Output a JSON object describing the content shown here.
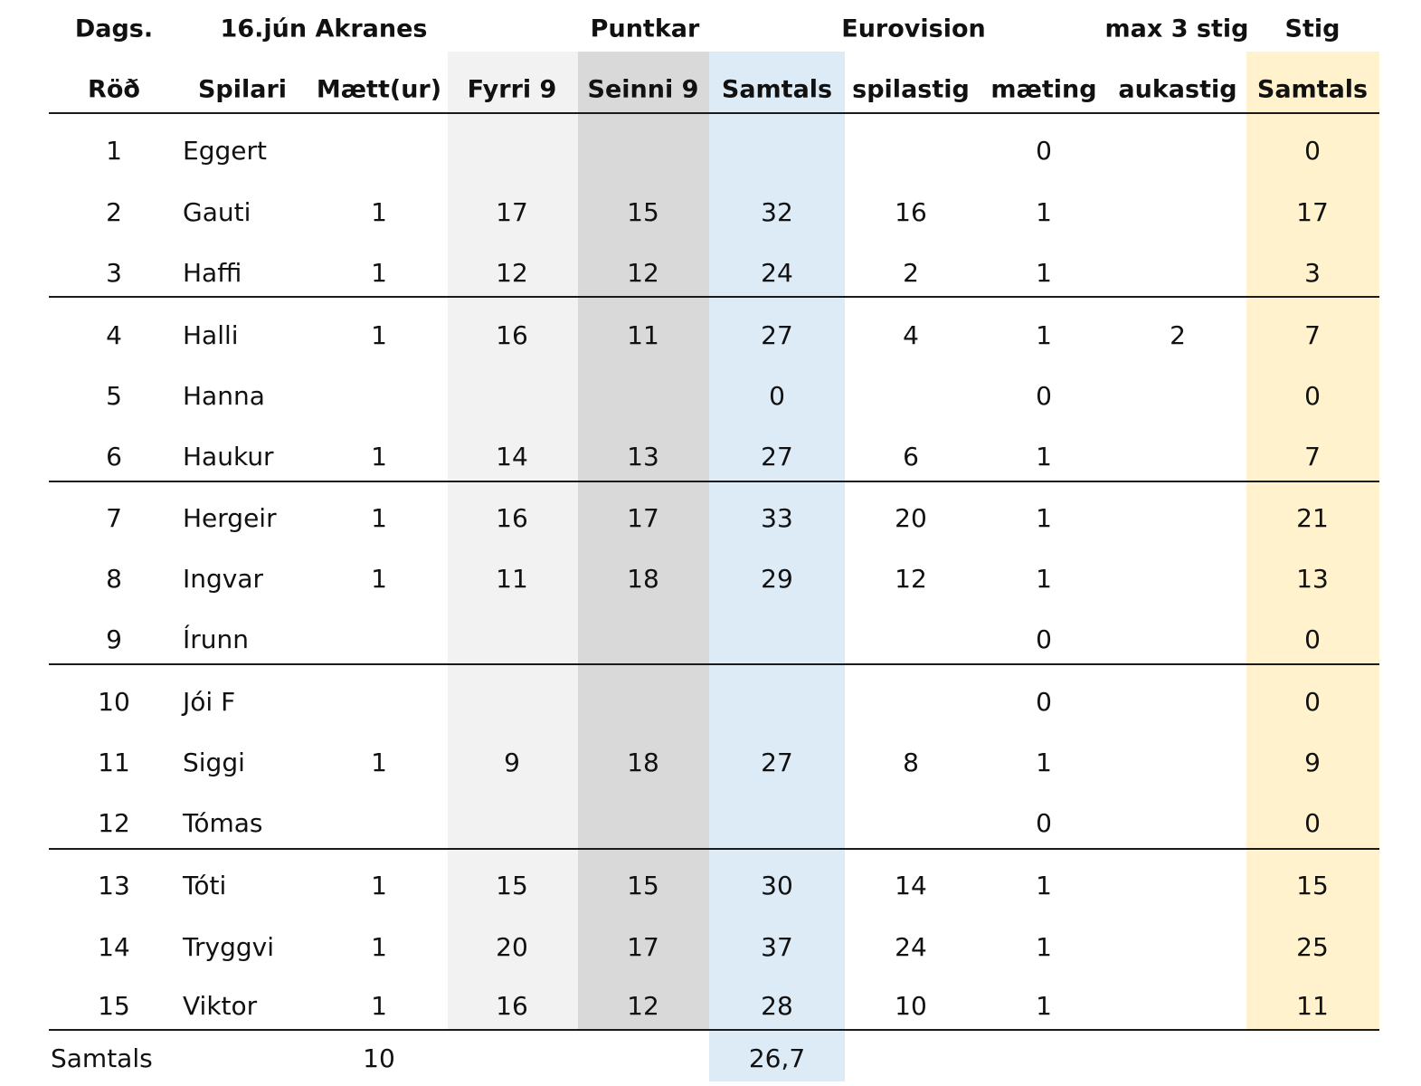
{
  "header": {
    "row1": {
      "dags": "Dags.",
      "date_place": "16.jún Akranes",
      "puntkar": "Puntkar",
      "eurovision": "Eurovision",
      "max_stig": "max 3 stig",
      "stig": "Stig"
    },
    "row2": {
      "rod": "Röð",
      "spilari": "Spilari",
      "maett": "Mætt(ur)",
      "fyrri": "Fyrri 9",
      "seinni": "Seinni 9",
      "samtals": "Samtals",
      "spilastig": "spilastig",
      "maeting": "mæting",
      "aukastig": "aukastig",
      "stig_samtals": "Samtals"
    }
  },
  "rows": [
    {
      "rod": "1",
      "spilari": "Eggert",
      "maett": "",
      "fyrri": "",
      "seinni": "",
      "samtals": "",
      "spilastig": "",
      "maeting": "0",
      "aukastig": "",
      "stig": "0"
    },
    {
      "rod": "2",
      "spilari": "Gauti",
      "maett": "1",
      "fyrri": "17",
      "seinni": "15",
      "samtals": "32",
      "spilastig": "16",
      "maeting": "1",
      "aukastig": "",
      "stig": "17"
    },
    {
      "rod": "3",
      "spilari": "Haffi",
      "maett": "1",
      "fyrri": "12",
      "seinni": "12",
      "samtals": "24",
      "spilastig": "2",
      "maeting": "1",
      "aukastig": "",
      "stig": "3"
    },
    {
      "rod": "4",
      "spilari": "Halli",
      "maett": "1",
      "fyrri": "16",
      "seinni": "11",
      "samtals": "27",
      "spilastig": "4",
      "maeting": "1",
      "aukastig": "2",
      "stig": "7"
    },
    {
      "rod": "5",
      "spilari": "Hanna",
      "maett": "",
      "fyrri": "",
      "seinni": "",
      "samtals": "0",
      "spilastig": "",
      "maeting": "0",
      "aukastig": "",
      "stig": "0"
    },
    {
      "rod": "6",
      "spilari": "Haukur",
      "maett": "1",
      "fyrri": "14",
      "seinni": "13",
      "samtals": "27",
      "spilastig": "6",
      "maeting": "1",
      "aukastig": "",
      "stig": "7"
    },
    {
      "rod": "7",
      "spilari": "Hergeir",
      "maett": "1",
      "fyrri": "16",
      "seinni": "17",
      "samtals": "33",
      "spilastig": "20",
      "maeting": "1",
      "aukastig": "",
      "stig": "21"
    },
    {
      "rod": "8",
      "spilari": "Ingvar",
      "maett": "1",
      "fyrri": "11",
      "seinni": "18",
      "samtals": "29",
      "spilastig": "12",
      "maeting": "1",
      "aukastig": "",
      "stig": "13"
    },
    {
      "rod": "9",
      "spilari": "Írunn",
      "maett": "",
      "fyrri": "",
      "seinni": "",
      "samtals": "",
      "spilastig": "",
      "maeting": "0",
      "aukastig": "",
      "stig": "0"
    },
    {
      "rod": "10",
      "spilari": "Jói F",
      "maett": "",
      "fyrri": "",
      "seinni": "",
      "samtals": "",
      "spilastig": "",
      "maeting": "0",
      "aukastig": "",
      "stig": "0"
    },
    {
      "rod": "11",
      "spilari": "Siggi",
      "maett": "1",
      "fyrri": "9",
      "seinni": "18",
      "samtals": "27",
      "spilastig": "8",
      "maeting": "1",
      "aukastig": "",
      "stig": "9"
    },
    {
      "rod": "12",
      "spilari": "Tómas",
      "maett": "",
      "fyrri": "",
      "seinni": "",
      "samtals": "",
      "spilastig": "",
      "maeting": "0",
      "aukastig": "",
      "stig": "0"
    },
    {
      "rod": "13",
      "spilari": "Tóti",
      "maett": "1",
      "fyrri": "15",
      "seinni": "15",
      "samtals": "30",
      "spilastig": "14",
      "maeting": "1",
      "aukastig": "",
      "stig": "15"
    },
    {
      "rod": "14",
      "spilari": "Tryggvi",
      "maett": "1",
      "fyrri": "20",
      "seinni": "17",
      "samtals": "37",
      "spilastig": "24",
      "maeting": "1",
      "aukastig": "",
      "stig": "25"
    },
    {
      "rod": "15",
      "spilari": "Viktor",
      "maett": "1",
      "fyrri": "16",
      "seinni": "12",
      "samtals": "28",
      "spilastig": "10",
      "maeting": "1",
      "aukastig": "",
      "stig": "11"
    }
  ],
  "footer": {
    "label": "Samtals",
    "maett_total": "10",
    "samtals_avg": "26,7"
  },
  "colors": {
    "fyrri_band": "#f2f2f2",
    "seinni_band": "#d9d9d9",
    "samtals_band": "#ddebf7",
    "stig_band": "#fff2cc",
    "rule": "#1a1a1a"
  }
}
